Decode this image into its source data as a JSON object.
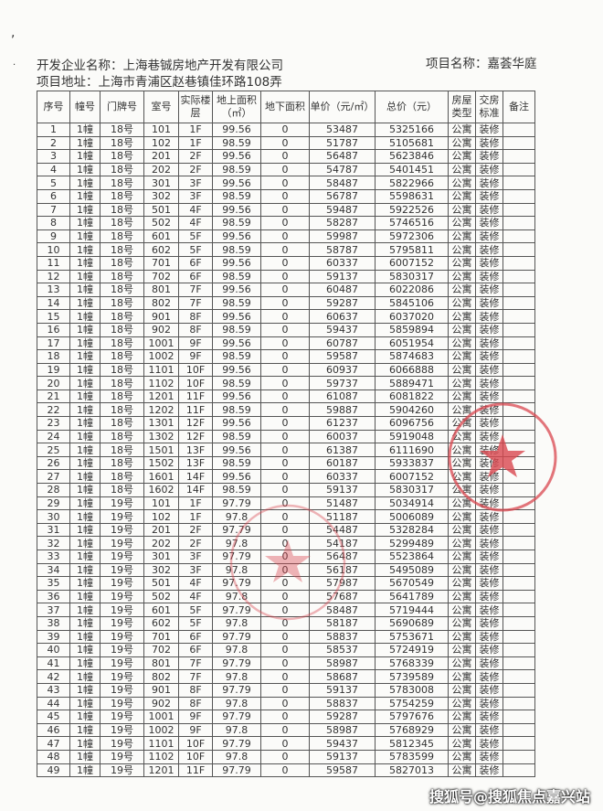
{
  "header": {
    "developer": "开发企业名称：上海巷铖房地产开发有限公司",
    "project_name": "项目名称：嘉荟华庭",
    "address": "项目地址：上海市青浦区赵巷镇佳环路108弄"
  },
  "columns": [
    "序号",
    "幢号",
    "门牌号",
    "室号",
    "实际楼层",
    "地上面积（㎡）",
    "地下面积",
    "单价（元/㎡）",
    "总价（元）",
    "房屋类型",
    "交房标准",
    "备注"
  ],
  "rows": [
    [
      "1",
      "1幢",
      "18号",
      "101",
      "1F",
      "99.56",
      "0",
      "53487",
      "5325166",
      "公寓",
      "装修",
      ""
    ],
    [
      "2",
      "1幢",
      "18号",
      "102",
      "1F",
      "98.59",
      "0",
      "51787",
      "5105681",
      "公寓",
      "装修",
      ""
    ],
    [
      "3",
      "1幢",
      "18号",
      "201",
      "2F",
      "99.56",
      "0",
      "56487",
      "5623846",
      "公寓",
      "装修",
      ""
    ],
    [
      "4",
      "1幢",
      "18号",
      "202",
      "2F",
      "98.59",
      "0",
      "54787",
      "5401451",
      "公寓",
      "装修",
      ""
    ],
    [
      "5",
      "1幢",
      "18号",
      "301",
      "3F",
      "99.56",
      "0",
      "58487",
      "5822966",
      "公寓",
      "装修",
      ""
    ],
    [
      "6",
      "1幢",
      "18号",
      "302",
      "3F",
      "98.59",
      "0",
      "56787",
      "5598631",
      "公寓",
      "装修",
      ""
    ],
    [
      "7",
      "1幢",
      "18号",
      "501",
      "4F",
      "99.56",
      "0",
      "59487",
      "5922526",
      "公寓",
      "装修",
      ""
    ],
    [
      "8",
      "1幢",
      "18号",
      "502",
      "4F",
      "98.59",
      "0",
      "58287",
      "5746516",
      "公寓",
      "装修",
      ""
    ],
    [
      "9",
      "1幢",
      "18号",
      "601",
      "5F",
      "99.56",
      "0",
      "59987",
      "5972306",
      "公寓",
      "装修",
      ""
    ],
    [
      "10",
      "1幢",
      "18号",
      "602",
      "5F",
      "98.59",
      "0",
      "58787",
      "5795811",
      "公寓",
      "装修",
      ""
    ],
    [
      "11",
      "1幢",
      "18号",
      "701",
      "6F",
      "99.56",
      "0",
      "60337",
      "6007152",
      "公寓",
      "装修",
      ""
    ],
    [
      "12",
      "1幢",
      "18号",
      "702",
      "6F",
      "98.59",
      "0",
      "59137",
      "5830317",
      "公寓",
      "装修",
      ""
    ],
    [
      "13",
      "1幢",
      "18号",
      "801",
      "7F",
      "99.56",
      "0",
      "60487",
      "6022086",
      "公寓",
      "装修",
      ""
    ],
    [
      "14",
      "1幢",
      "18号",
      "802",
      "7F",
      "98.59",
      "0",
      "59287",
      "5845106",
      "公寓",
      "装修",
      ""
    ],
    [
      "15",
      "1幢",
      "18号",
      "901",
      "8F",
      "99.56",
      "0",
      "60637",
      "6037020",
      "公寓",
      "装修",
      ""
    ],
    [
      "16",
      "1幢",
      "18号",
      "902",
      "8F",
      "98.59",
      "0",
      "59437",
      "5859894",
      "公寓",
      "装修",
      ""
    ],
    [
      "17",
      "1幢",
      "18号",
      "1001",
      "9F",
      "99.56",
      "0",
      "60787",
      "6051954",
      "公寓",
      "装修",
      ""
    ],
    [
      "18",
      "1幢",
      "18号",
      "1002",
      "9F",
      "98.59",
      "0",
      "59587",
      "5874683",
      "公寓",
      "装修",
      ""
    ],
    [
      "19",
      "1幢",
      "18号",
      "1101",
      "10F",
      "99.56",
      "0",
      "60937",
      "6066888",
      "公寓",
      "装修",
      ""
    ],
    [
      "20",
      "1幢",
      "18号",
      "1102",
      "10F",
      "98.59",
      "0",
      "59737",
      "5889471",
      "公寓",
      "装修",
      ""
    ],
    [
      "21",
      "1幢",
      "18号",
      "1201",
      "11F",
      "99.56",
      "0",
      "61087",
      "6081822",
      "公寓",
      "装修",
      ""
    ],
    [
      "22",
      "1幢",
      "18号",
      "1202",
      "11F",
      "98.59",
      "0",
      "59887",
      "5904260",
      "公寓",
      "装修",
      ""
    ],
    [
      "23",
      "1幢",
      "18号",
      "1301",
      "12F",
      "99.56",
      "0",
      "61237",
      "6096756",
      "公寓",
      "装修",
      ""
    ],
    [
      "24",
      "1幢",
      "18号",
      "1302",
      "12F",
      "98.59",
      "0",
      "60037",
      "5919048",
      "公寓",
      "装修",
      ""
    ],
    [
      "25",
      "1幢",
      "18号",
      "1501",
      "13F",
      "99.56",
      "0",
      "61387",
      "6111690",
      "公寓",
      "装修",
      ""
    ],
    [
      "26",
      "1幢",
      "18号",
      "1502",
      "13F",
      "98.59",
      "0",
      "60187",
      "5933837",
      "公寓",
      "装修",
      ""
    ],
    [
      "27",
      "1幢",
      "18号",
      "1601",
      "14F",
      "99.56",
      "0",
      "60337",
      "6007152",
      "公寓",
      "装修",
      ""
    ],
    [
      "28",
      "1幢",
      "18号",
      "1602",
      "14F",
      "98.59",
      "0",
      "59137",
      "5830317",
      "公寓",
      "装修",
      ""
    ],
    [
      "29",
      "1幢",
      "19号",
      "101",
      "1F",
      "97.79",
      "0",
      "51487",
      "5034914",
      "公寓",
      "装修",
      ""
    ],
    [
      "30",
      "1幢",
      "19号",
      "102",
      "1F",
      "97.8",
      "0",
      "51187",
      "5006089",
      "公寓",
      "装修",
      ""
    ],
    [
      "31",
      "1幢",
      "19号",
      "201",
      "2F",
      "97.79",
      "0",
      "54487",
      "5328284",
      "公寓",
      "装修",
      ""
    ],
    [
      "32",
      "1幢",
      "19号",
      "202",
      "2F",
      "97.8",
      "0",
      "54187",
      "5299489",
      "公寓",
      "装修",
      ""
    ],
    [
      "33",
      "1幢",
      "19号",
      "301",
      "3F",
      "97.79",
      "0",
      "56487",
      "5523864",
      "公寓",
      "装修",
      ""
    ],
    [
      "34",
      "1幢",
      "19号",
      "302",
      "3F",
      "97.8",
      "0",
      "56187",
      "5495089",
      "公寓",
      "装修",
      ""
    ],
    [
      "35",
      "1幢",
      "19号",
      "501",
      "4F",
      "97.79",
      "0",
      "57987",
      "5670549",
      "公寓",
      "装修",
      ""
    ],
    [
      "36",
      "1幢",
      "19号",
      "502",
      "4F",
      "97.8",
      "0",
      "57687",
      "5641789",
      "公寓",
      "装修",
      ""
    ],
    [
      "37",
      "1幢",
      "19号",
      "601",
      "5F",
      "97.79",
      "0",
      "58487",
      "5719444",
      "公寓",
      "装修",
      ""
    ],
    [
      "38",
      "1幢",
      "19号",
      "602",
      "5F",
      "97.8",
      "0",
      "58187",
      "5690689",
      "公寓",
      "装修",
      ""
    ],
    [
      "39",
      "1幢",
      "19号",
      "701",
      "6F",
      "97.79",
      "0",
      "58837",
      "5753671",
      "公寓",
      "装修",
      ""
    ],
    [
      "40",
      "1幢",
      "19号",
      "702",
      "6F",
      "97.8",
      "0",
      "58537",
      "5724919",
      "公寓",
      "装修",
      ""
    ],
    [
      "41",
      "1幢",
      "19号",
      "801",
      "7F",
      "97.79",
      "0",
      "58987",
      "5768339",
      "公寓",
      "装修",
      ""
    ],
    [
      "42",
      "1幢",
      "19号",
      "802",
      "7F",
      "97.8",
      "0",
      "58687",
      "5739589",
      "公寓",
      "装修",
      ""
    ],
    [
      "43",
      "1幢",
      "19号",
      "901",
      "8F",
      "97.79",
      "0",
      "59137",
      "5783008",
      "公寓",
      "装修",
      ""
    ],
    [
      "44",
      "1幢",
      "19号",
      "902",
      "8F",
      "97.8",
      "0",
      "58837",
      "5754259",
      "公寓",
      "装修",
      ""
    ],
    [
      "45",
      "1幢",
      "19号",
      "1001",
      "9F",
      "97.79",
      "0",
      "59287",
      "5797676",
      "公寓",
      "装修",
      ""
    ],
    [
      "46",
      "1幢",
      "19号",
      "1002",
      "9F",
      "97.8",
      "0",
      "58987",
      "5768929",
      "公寓",
      "装修",
      ""
    ],
    [
      "47",
      "1幢",
      "19号",
      "1101",
      "10F",
      "97.79",
      "0",
      "59437",
      "5812345",
      "公寓",
      "装修",
      ""
    ],
    [
      "48",
      "1幢",
      "19号",
      "1102",
      "10F",
      "97.8",
      "0",
      "59137",
      "5783599",
      "公寓",
      "装修",
      ""
    ],
    [
      "49",
      "1幢",
      "19号",
      "1201",
      "11F",
      "97.79",
      "0",
      "59587",
      "5827013",
      "公寓",
      "装修",
      ""
    ]
  ],
  "watermark": "搜狐号@搜狐焦点嘉兴站",
  "colors": {
    "seal": "#d9474f",
    "ink": "#333333"
  }
}
